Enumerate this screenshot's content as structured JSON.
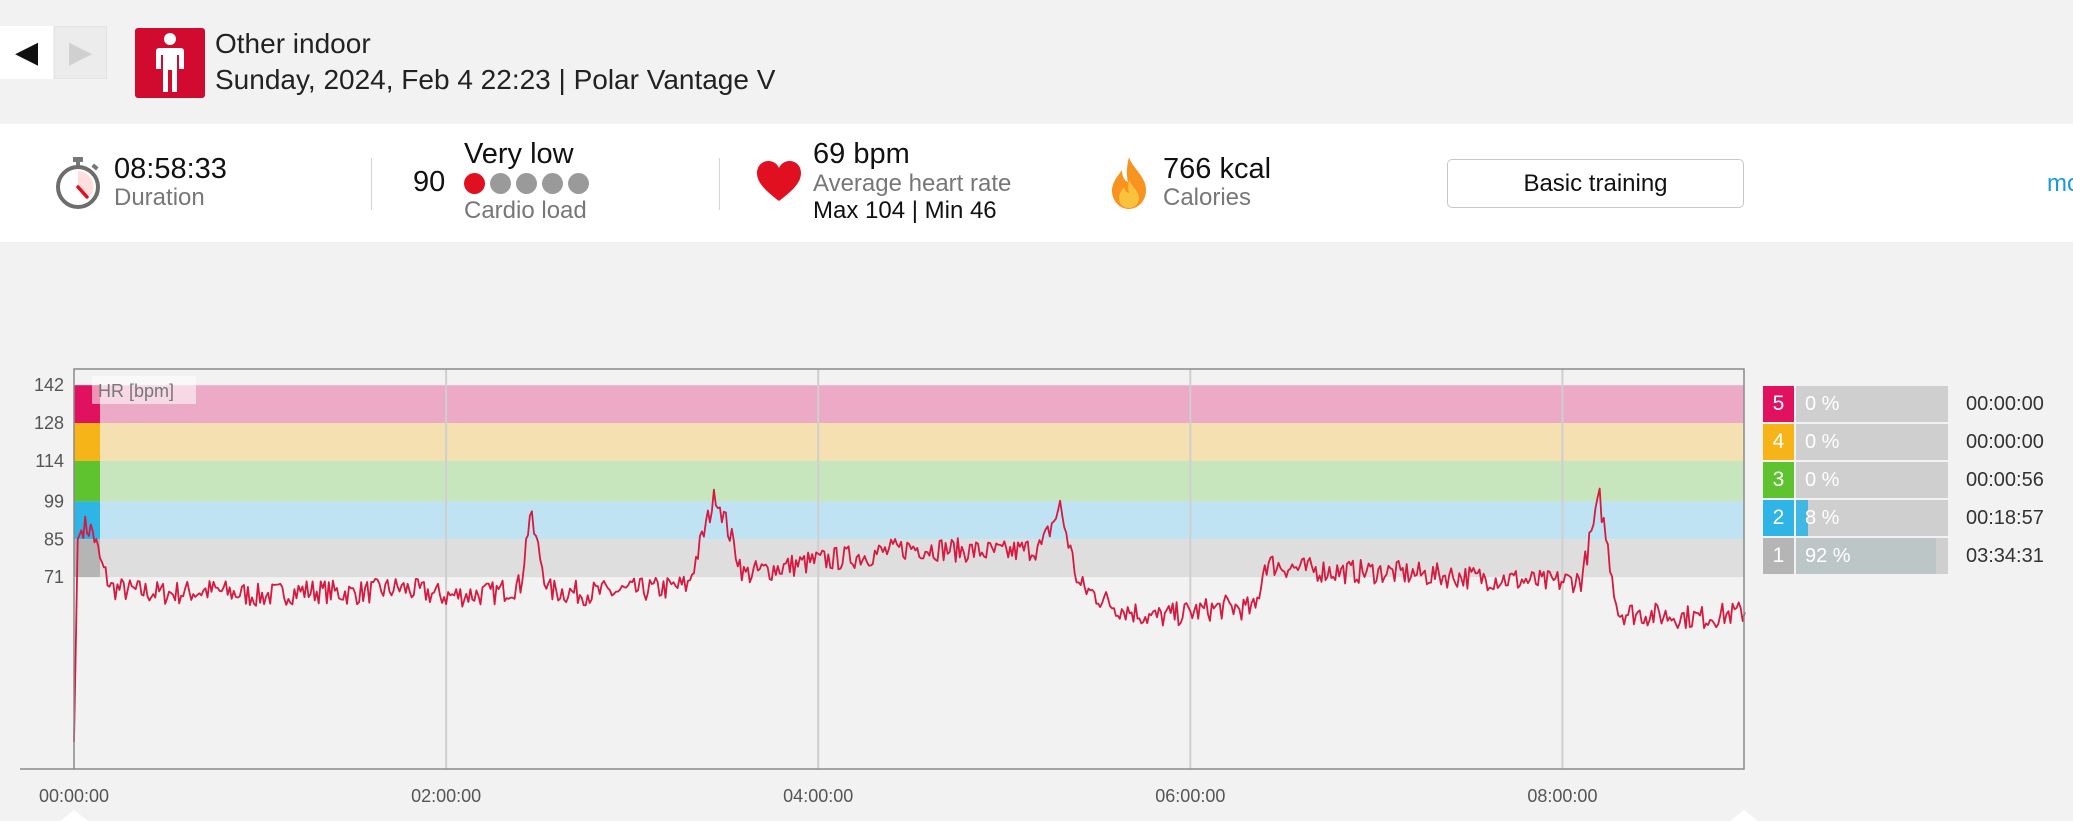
{
  "header": {
    "prev_icon": "◀",
    "next_icon": "▶",
    "sport_icon": "person-standing-icon",
    "sport": "Other indoor",
    "date_device": "Sunday, 2024, Feb 4 22:23 | Polar Vantage V"
  },
  "summary": {
    "duration_value": "08:58:33",
    "duration_label": "Duration",
    "cardio_value": "90",
    "cardio_level": "Very low",
    "cardio_label": "Cardio load",
    "cardio_dots_total": 5,
    "cardio_dots_active": 1,
    "hr_value": "69 bpm",
    "hr_label": "Average heart rate",
    "hr_minmax": "Max 104  |  Min 46",
    "calories_value": "766 kcal",
    "calories_label": "Calories",
    "training_button": "Basic training",
    "more_link": "mo"
  },
  "colors": {
    "zone5": "#e0115f",
    "zone4": "#f7b418",
    "zone3": "#5fc22f",
    "zone2": "#2fb4e6",
    "zone1": "#b5b5b5",
    "hr_line": "#d7193f",
    "sport_icon_bg": "#d10a2f",
    "link": "#1a9ad6"
  },
  "chart_data": {
    "type": "line",
    "title": "",
    "ylabel": "HR [bpm]",
    "xlabel": "",
    "ylim": [
      0,
      148
    ],
    "xlim_seconds": [
      0,
      32313
    ],
    "y_ticks": [
      142,
      128,
      114,
      99,
      85,
      71
    ],
    "x_ticks": [
      "00:00:00",
      "02:00:00",
      "04:00:00",
      "06:00:00",
      "08:00:00"
    ],
    "grid": true,
    "zones": [
      {
        "zone": "5",
        "from": 128,
        "to": 142
      },
      {
        "zone": "4",
        "from": 114,
        "to": 128
      },
      {
        "zone": "3",
        "from": 99,
        "to": 114
      },
      {
        "zone": "2",
        "from": 85,
        "to": 99
      },
      {
        "zone": "1",
        "from": 71,
        "to": 85
      }
    ],
    "series": [
      {
        "x_hours": [
          0.0,
          0.02,
          0.05,
          0.1,
          0.15,
          0.2,
          0.3,
          0.5,
          0.75,
          1.0,
          1.25,
          1.5,
          1.75,
          2.0,
          2.25,
          2.4,
          2.45,
          2.55,
          2.75,
          3.0,
          3.2,
          3.3,
          3.45,
          3.6,
          3.75,
          4.0,
          4.25,
          4.5,
          4.75,
          5.0,
          5.2,
          5.3,
          5.4,
          5.6,
          5.8,
          6.0,
          6.2,
          6.35,
          6.4,
          6.6,
          6.8,
          7.0,
          7.25,
          7.5,
          7.75,
          7.9,
          8.1,
          8.2,
          8.3,
          8.5,
          8.75,
          8.98
        ],
        "values": [
          10,
          85,
          90,
          88,
          75,
          67,
          66,
          65,
          66,
          64,
          66,
          65,
          67,
          64,
          65,
          68,
          94,
          66,
          65,
          66,
          67,
          68,
          102,
          72,
          74,
          77,
          79,
          82,
          81,
          80,
          82,
          97,
          68,
          60,
          56,
          58,
          60,
          59,
          76,
          74,
          73,
          73,
          72,
          71,
          70,
          69,
          70,
          100,
          58,
          57,
          56,
          58
        ]
      }
    ]
  },
  "zones_table": [
    {
      "zone": "5",
      "percent": "0 %",
      "time": "00:00:00",
      "fill": 0.0
    },
    {
      "zone": "4",
      "percent": "0 %",
      "time": "00:00:00",
      "fill": 0.0
    },
    {
      "zone": "3",
      "percent": "0 %",
      "time": "00:00:56",
      "fill": 0.0
    },
    {
      "zone": "2",
      "percent": "8 %",
      "time": "00:18:57",
      "fill": 0.08
    },
    {
      "zone": "1",
      "percent": "92 %",
      "time": "03:34:31",
      "fill": 0.92
    }
  ]
}
